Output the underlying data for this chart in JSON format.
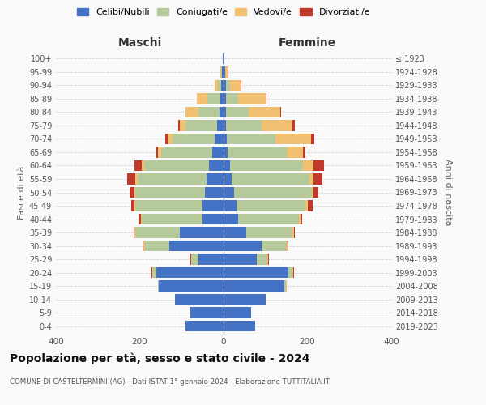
{
  "age_groups": [
    "0-4",
    "5-9",
    "10-14",
    "15-19",
    "20-24",
    "25-29",
    "30-34",
    "35-39",
    "40-44",
    "45-49",
    "50-54",
    "55-59",
    "60-64",
    "65-69",
    "70-74",
    "75-79",
    "80-84",
    "85-89",
    "90-94",
    "95-99",
    "100+"
  ],
  "birth_years": [
    "2019-2023",
    "2014-2018",
    "2009-2013",
    "2004-2008",
    "1999-2003",
    "1994-1998",
    "1989-1993",
    "1984-1988",
    "1979-1983",
    "1974-1978",
    "1969-1973",
    "1964-1968",
    "1959-1963",
    "1954-1958",
    "1949-1953",
    "1944-1948",
    "1939-1943",
    "1934-1938",
    "1929-1933",
    "1924-1928",
    "≤ 1923"
  ],
  "colors": {
    "celibi": "#4472c4",
    "coniugati": "#b5c99a",
    "vedovi": "#f0c070",
    "divorziati": "#c0392b"
  },
  "males": {
    "celibi": [
      90,
      80,
      115,
      155,
      160,
      60,
      130,
      105,
      50,
      50,
      45,
      40,
      35,
      28,
      22,
      15,
      10,
      8,
      5,
      3,
      2
    ],
    "coniugati": [
      0,
      0,
      0,
      2,
      8,
      15,
      60,
      105,
      145,
      160,
      165,
      165,
      155,
      120,
      100,
      75,
      50,
      30,
      8,
      2,
      0
    ],
    "vedovi": [
      0,
      0,
      0,
      0,
      2,
      2,
      2,
      2,
      2,
      3,
      3,
      5,
      5,
      8,
      12,
      15,
      30,
      25,
      8,
      2,
      0
    ],
    "divorziati": [
      0,
      0,
      0,
      0,
      2,
      2,
      2,
      3,
      5,
      8,
      12,
      20,
      18,
      5,
      5,
      3,
      0,
      0,
      0,
      0,
      0
    ]
  },
  "females": {
    "nubili": [
      75,
      65,
      100,
      145,
      155,
      80,
      90,
      55,
      35,
      30,
      25,
      20,
      15,
      10,
      8,
      5,
      5,
      5,
      5,
      3,
      2
    ],
    "coniugati": [
      0,
      0,
      0,
      3,
      10,
      25,
      60,
      110,
      145,
      165,
      185,
      185,
      175,
      140,
      115,
      85,
      55,
      30,
      10,
      2,
      0
    ],
    "vedovi": [
      0,
      0,
      0,
      2,
      2,
      2,
      2,
      3,
      3,
      5,
      5,
      10,
      25,
      40,
      85,
      75,
      75,
      65,
      25,
      5,
      0
    ],
    "divorziati": [
      0,
      0,
      0,
      0,
      2,
      2,
      2,
      3,
      5,
      12,
      12,
      20,
      25,
      5,
      8,
      5,
      2,
      2,
      2,
      2,
      0
    ]
  },
  "title": "Popolazione per età, sesso e stato civile - 2024",
  "subtitle": "COMUNE DI CASTELTERMINI (AG) - Dati ISTAT 1° gennaio 2024 - Elaborazione TUTTITALIA.IT",
  "xlabel_left": "Maschi",
  "xlabel_right": "Femmine",
  "ylabel_left": "Fasce di età",
  "ylabel_right": "Anni di nascita",
  "xlim": 400,
  "legend_labels": [
    "Celibi/Nubili",
    "Coniugati/e",
    "Vedovi/e",
    "Divorziati/e"
  ],
  "background_color": "#f9f9f9",
  "grid_color": "#cccccc"
}
